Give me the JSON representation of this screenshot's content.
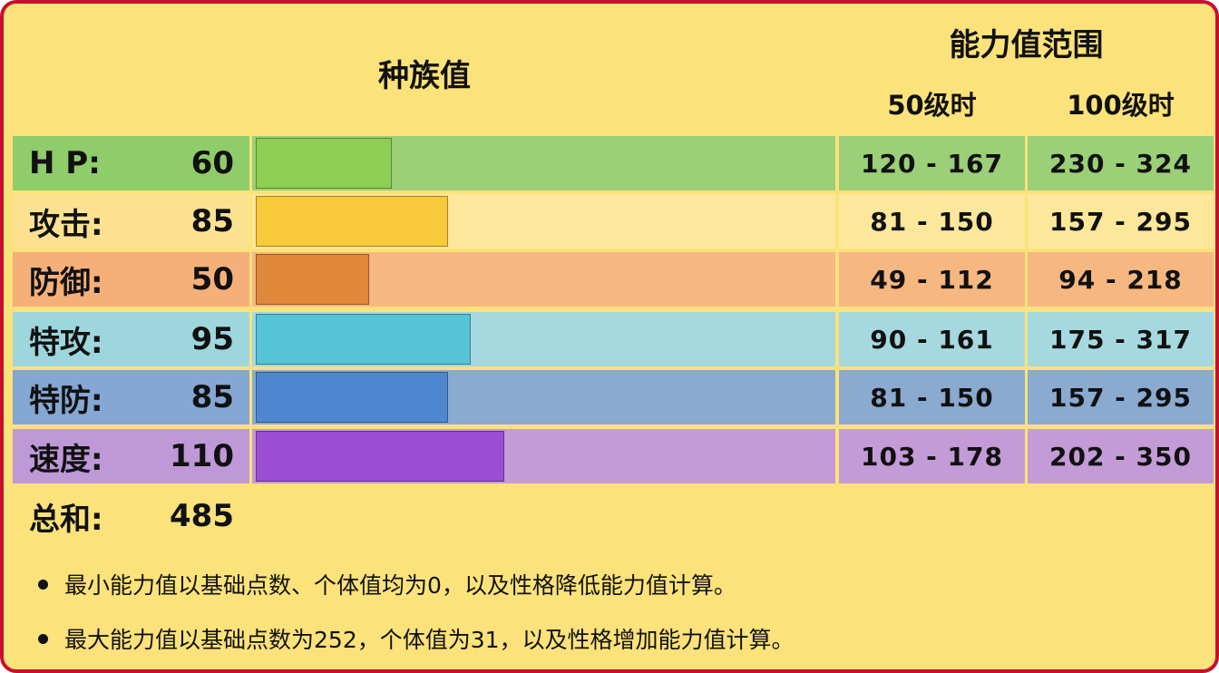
{
  "header": {
    "base_stats": "种族值",
    "stat_range": "能力值范围",
    "level50": "50级时",
    "level100": "100级时"
  },
  "stats": [
    {
      "name": "H P:",
      "value": 60,
      "range50": "120 - 167",
      "range100": "230 - 324",
      "bar_color": "#8ccf52",
      "row_color": "#9bcf78",
      "label_color": "#8fcc6a"
    },
    {
      "name": "攻击:",
      "value": 85,
      "range50": "81 - 150",
      "range100": "157 - 295",
      "bar_color": "#f7c93b",
      "row_color": "#fce79a",
      "label_color": "#fce290"
    },
    {
      "name": "防御:",
      "value": 50,
      "range50": "49 - 112",
      "range100": "94 - 218",
      "bar_color": "#e0883a",
      "row_color": "#f6b781",
      "label_color": "#f5b07a"
    },
    {
      "name": "特攻:",
      "value": 95,
      "range50": "90 - 161",
      "range100": "175 - 317",
      "bar_color": "#55c4d6",
      "row_color": "#a5d9df",
      "label_color": "#9dd7dd"
    },
    {
      "name": "特防:",
      "value": 85,
      "range50": "81 - 150",
      "range100": "157 - 295",
      "bar_color": "#4f86d0",
      "row_color": "#8aaad0",
      "label_color": "#84a7d3"
    },
    {
      "name": "速度:",
      "value": 110,
      "range50": "103 - 178",
      "range100": "202 - 350",
      "bar_color": "#9b4ed4",
      "row_color": "#c39bd6",
      "label_color": "#bf98d8"
    }
  ],
  "total": {
    "name": "总和:",
    "value": "485"
  },
  "notes": [
    "最小能力值以基础点数、个体值均为0，以及性格降低能力值计算。",
    "最大能力值以基础点数为252，个体值为31，以及性格增加能力值计算。"
  ]
}
